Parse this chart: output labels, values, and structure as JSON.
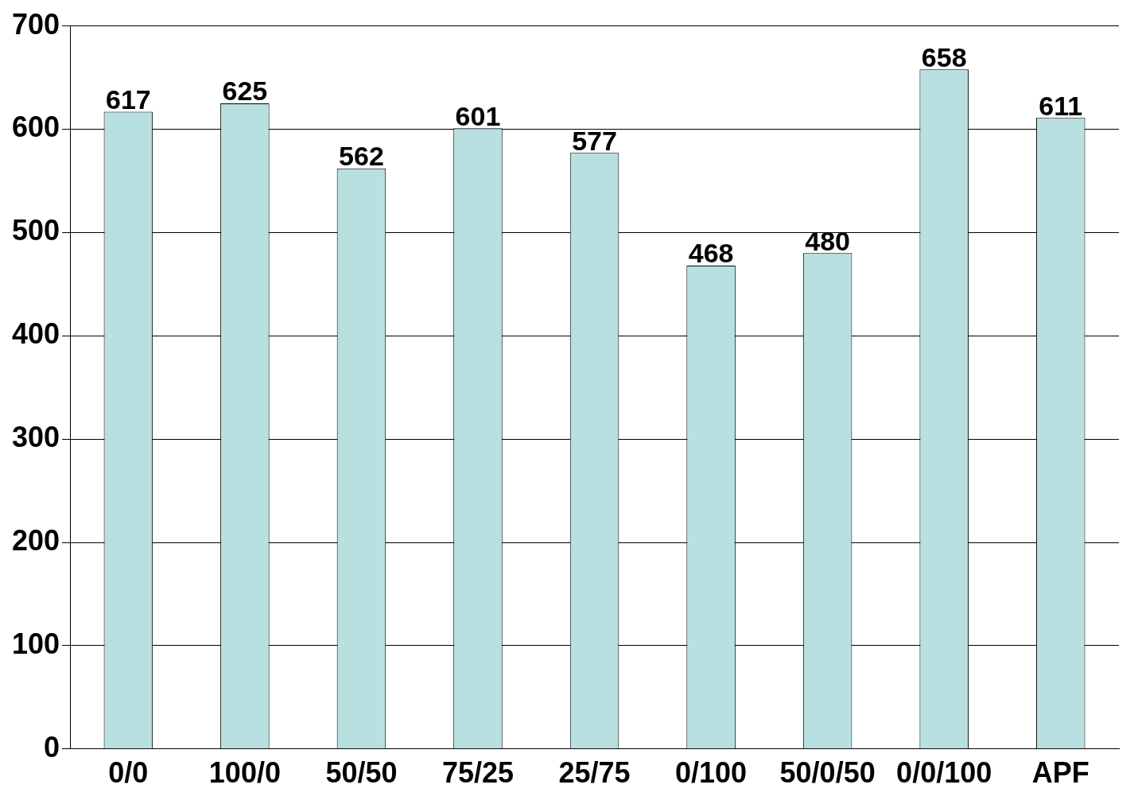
{
  "chart_data": {
    "type": "bar",
    "categories": [
      "0/0",
      "100/0",
      "50/50",
      "75/25",
      "25/75",
      "0/100",
      "50/0/50",
      "0/0/100",
      "APF"
    ],
    "values": [
      617,
      625,
      562,
      601,
      577,
      468,
      480,
      658,
      611
    ],
    "color": "#b8e0e0",
    "ylim": [
      0,
      700
    ],
    "yticks": [
      0,
      100,
      200,
      300,
      400,
      500,
      600,
      700
    ],
    "grid": "y",
    "legend": false,
    "data_labels": true
  }
}
